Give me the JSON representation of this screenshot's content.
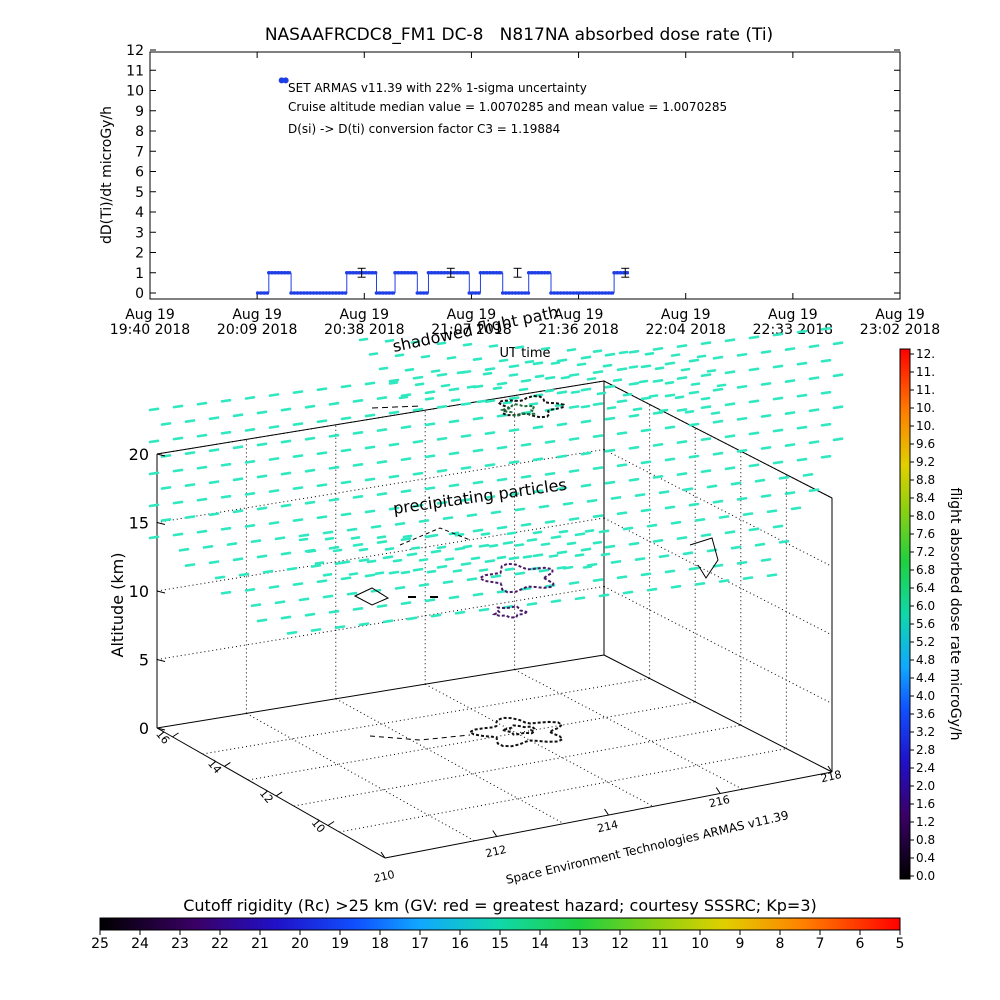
{
  "chart_data": [
    {
      "type": "line",
      "title": "NASAAFRCDC8_FM1 DC-8   N817NA absorbed dose rate (Ti)",
      "ylabel": "dD(Ti)/dt microGy/h",
      "xlabel": "UT time",
      "ylim": [
        0,
        12
      ],
      "yticks": [
        "0",
        "1",
        "2",
        "3",
        "4",
        "5",
        "6",
        "7",
        "8",
        "9",
        "10",
        "11",
        "12"
      ],
      "xlim": [
        "19:40",
        "23:02"
      ],
      "xticks": [
        {
          "line1": "Aug 19",
          "line2": "19:40 2018"
        },
        {
          "line1": "Aug 19",
          "line2": "20:09 2018"
        },
        {
          "line1": "Aug 19",
          "line2": "20:38 2018"
        },
        {
          "line1": "Aug 19",
          "line2": "21:07 2018"
        },
        {
          "line1": "Aug 19",
          "line2": "21:36 2018"
        },
        {
          "line1": "Aug 19",
          "line2": "22:04 2018"
        },
        {
          "line1": "Aug 19",
          "line2": "22:33 2018"
        },
        {
          "line1": "Aug 19",
          "line2": "23:02 2018"
        }
      ],
      "annotations": [
        "SET ARMAS v11.39 with 22% 1-sigma uncertainty",
        "Cruise altitude median value = 1.0070285 and mean value = 1.0070285",
        "D(si) -> D(ti) conversion factor C3 = 1.19884"
      ],
      "series": [
        {
          "color": "#1f3fe6",
          "segments": [
            {
              "x": [
                "20:09",
                "20:12"
              ],
              "y": 0
            },
            {
              "x": [
                "20:12",
                "20:18"
              ],
              "y": 1.0
            },
            {
              "x": [
                "20:18",
                "20:33"
              ],
              "y": 0
            },
            {
              "x": [
                "20:33",
                "20:41"
              ],
              "y": 1.0
            },
            {
              "x": [
                "20:41",
                "20:46"
              ],
              "y": 0
            },
            {
              "x": [
                "20:46",
                "20:52"
              ],
              "y": 1.0
            },
            {
              "x": [
                "20:52",
                "20:55"
              ],
              "y": 0
            },
            {
              "x": [
                "20:55",
                "21:06"
              ],
              "y": 1.0
            },
            {
              "x": [
                "21:06",
                "21:09"
              ],
              "y": 0
            },
            {
              "x": [
                "21:09",
                "21:15"
              ],
              "y": 1.0
            },
            {
              "x": [
                "21:15",
                "21:22"
              ],
              "y": 0
            },
            {
              "x": [
                "21:22",
                "21:28"
              ],
              "y": 1.0
            },
            {
              "x": [
                "21:28",
                "21:45"
              ],
              "y": 0
            },
            {
              "x": [
                "21:45",
                "21:49"
              ],
              "y": 1.0
            }
          ],
          "error_bars": [
            {
              "x": "20:37",
              "y": 1.0,
              "err": 0.22
            },
            {
              "x": "21:01",
              "y": 1.0,
              "err": 0.22
            },
            {
              "x": "21:19",
              "y": 1.0,
              "err": 0.22
            },
            {
              "x": "21:48",
              "y": 1.0,
              "err": 0.22
            }
          ],
          "outliers": [
            {
              "x": "20:16",
              "y": 10.5
            }
          ]
        }
      ]
    },
    {
      "type": "scatter",
      "zlabel": "Altitude (km)",
      "zticks": [
        "0",
        "5",
        "10",
        "15",
        "20"
      ],
      "latitude_ticks": [
        "16",
        "14",
        "12",
        "10"
      ],
      "longitude_ticks": [
        "210",
        "212",
        "214",
        "216",
        "218"
      ],
      "annotations": [
        "shadowed flight path",
        "precipitating particles"
      ],
      "credit": "Space Environment Technologies ARMAS v11.39"
    },
    {
      "type": "heatmap",
      "colorbar_label": "flight absorbed dose rate microGy/h",
      "colorbar_ticks": [
        "0.0",
        "0.4",
        "0.8",
        "1.2",
        "1.6",
        "2.0",
        "2.4",
        "2.8",
        "3.2",
        "3.6",
        "4.0",
        "4.4",
        "4.8",
        "5.2",
        "5.6",
        "6.0",
        "6.4",
        "6.8",
        "7.2",
        "7.6",
        "8.0",
        "8.4",
        "8.8",
        "9.2",
        "9.6",
        "10.",
        "10.",
        "11.",
        "11.",
        "12."
      ]
    },
    {
      "type": "heatmap",
      "title": "Cutoff rigidity (Rc) >25 km (GV: red = greatest hazard; courtesy SSSRC; Kp=3)",
      "ticks": [
        "25",
        "24",
        "23",
        "22",
        "21",
        "20",
        "19",
        "18",
        "17",
        "16",
        "15",
        "14",
        "13",
        "12",
        "11",
        "10",
        "9",
        "8",
        "7",
        "6",
        "5"
      ]
    }
  ],
  "colors": {
    "series": "#1f3fe6",
    "particles": "#2fe8c0",
    "contour_dark": "#111111",
    "contour_purple": "#4a1a6a"
  }
}
